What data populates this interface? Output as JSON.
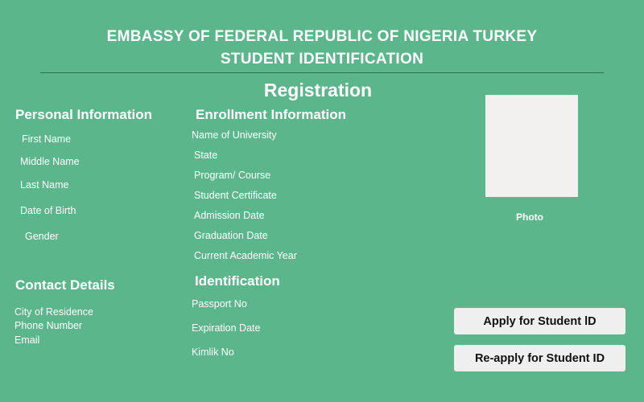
{
  "header": {
    "line1": "EMBASSY OF FEDERAL REPUBLIC OF NIGERIA TURKEY",
    "line2": "STUDENT IDENTIFICATION",
    "subtitle": "Registration"
  },
  "personal": {
    "title": "Personal Information",
    "fields": [
      "First Name",
      "Middle Name",
      "Last  Name",
      "Date of Birth",
      "Gender"
    ]
  },
  "contact": {
    "title": "Contact Details",
    "fields": [
      "City of Residence",
      "Phone Number",
      "Email"
    ]
  },
  "enrollment": {
    "title": "Enrollment Information",
    "fields": [
      "Name of University",
      "State",
      "Program/ Course",
      "Student Certificate",
      "Admission Date",
      "Graduation Date",
      "Current Academic Year"
    ]
  },
  "identification": {
    "title": "Identification",
    "fields": [
      "Passport No",
      "Expiration Date",
      "Kimlik No"
    ]
  },
  "photo": {
    "label": "Photo"
  },
  "buttons": {
    "apply": "Apply for Student lD",
    "reapply": "Re-apply for Student ID"
  },
  "colors": {
    "background": "#5cb68b",
    "button": "#efefef"
  }
}
